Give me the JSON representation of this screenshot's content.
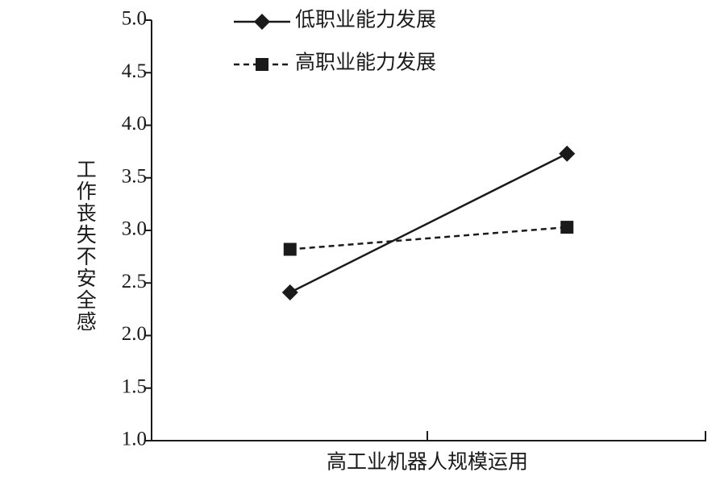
{
  "chart_data": {
    "type": "line",
    "x_label": "高工业机器人规模运用",
    "y_label": "工作丧失不安全感",
    "categories": [
      null,
      null
    ],
    "series": [
      {
        "name": "低职业能力发展",
        "color": "#1a1a1a",
        "marker": "diamond",
        "dash": "solid",
        "values": [
          2.41,
          3.73
        ]
      },
      {
        "name": "高职业能力发展",
        "color": "#1a1a1a",
        "marker": "square",
        "dash": "dashed",
        "values": [
          2.82,
          3.03
        ]
      }
    ],
    "ylim": [
      1.0,
      5.0
    ],
    "yticks": [
      {
        "value": 1,
        "label": "1.0"
      },
      {
        "value": 1.5,
        "label": "1.5"
      },
      {
        "value": 2,
        "label": "2.0"
      },
      {
        "value": 2.5,
        "label": "2.5"
      },
      {
        "value": 3,
        "label": "3.0"
      },
      {
        "value": 3.5,
        "label": "3.5"
      },
      {
        "value": 4,
        "label": "4.0"
      },
      {
        "value": 4.5,
        "label": "4.5"
      },
      {
        "value": 5,
        "label": "5.0"
      }
    ],
    "legend": "top"
  }
}
